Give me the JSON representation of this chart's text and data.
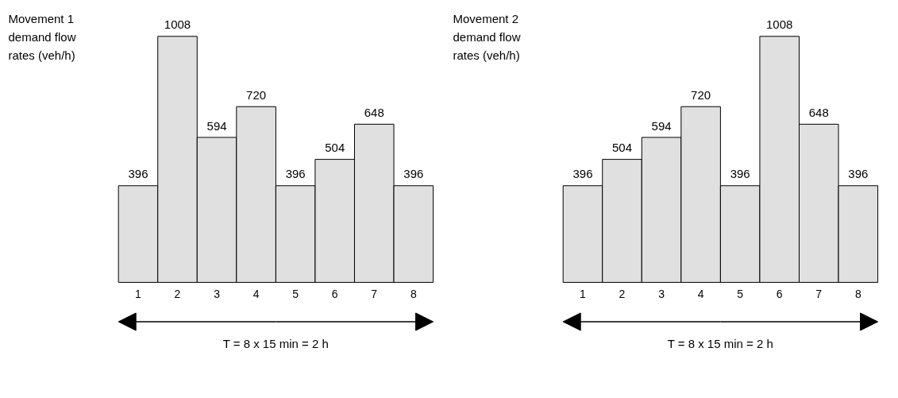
{
  "chart_data": [
    {
      "type": "bar",
      "title": "Movement 1 demand flow rates (veh/h)",
      "categories": [
        "1",
        "2",
        "3",
        "4",
        "5",
        "6",
        "7",
        "8"
      ],
      "values": [
        396,
        1008,
        594,
        720,
        396,
        504,
        648,
        396
      ],
      "color": "#e0e0e0",
      "data_labels": true,
      "annotations": [
        "T = 8 x 15 min = 2 h"
      ]
    },
    {
      "type": "bar",
      "title": "Movement 2 demand flow rates (veh/h)",
      "categories": [
        "1",
        "2",
        "3",
        "4",
        "5",
        "6",
        "7",
        "8"
      ],
      "values": [
        396,
        504,
        594,
        720,
        396,
        1008,
        648,
        396
      ],
      "color": "#e0e0e0",
      "data_labels": true,
      "annotations": [
        "T = 8 x 15 min = 2 h"
      ]
    }
  ]
}
